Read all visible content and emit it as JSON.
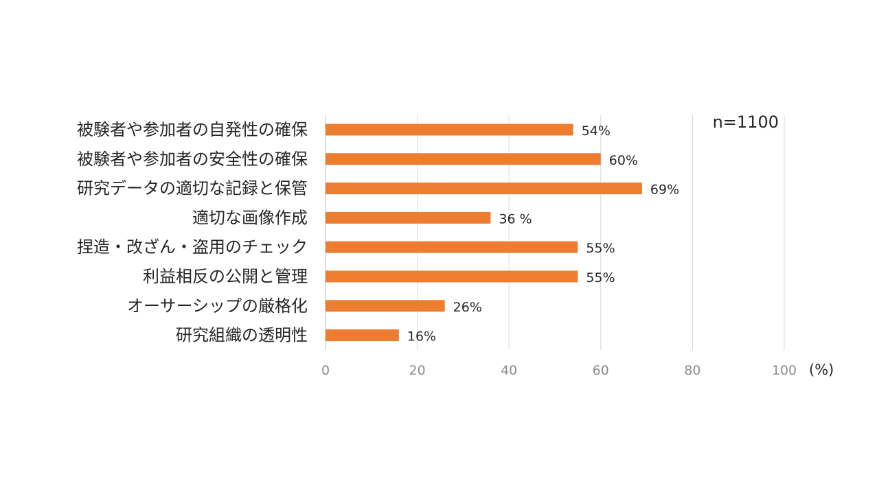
{
  "chart_data": {
    "type": "bar",
    "orientation": "horizontal",
    "categories": [
      "被験者や参加者の自発性の確保",
      "被験者や参加者の安全性の確保",
      "研究データの適切な記録と保管",
      "適切な画像作成",
      "捏造・改ざん・盗用のチェック",
      "利益相反の公開と管理",
      "オーサーシップの厳格化",
      "研究組織の透明性"
    ],
    "values": [
      54,
      60,
      69,
      36,
      55,
      55,
      26,
      16
    ],
    "data_labels": [
      "54%",
      "60%",
      "69%",
      "36 %",
      "55%",
      "55%",
      "26%",
      "16%"
    ],
    "xticks": [
      "0",
      "20",
      "40",
      "60",
      "80",
      "100"
    ],
    "xlim": [
      0,
      100
    ],
    "xunit": "(%)",
    "annotation": "n=1100",
    "grid": true,
    "bar_color": "#ED7D31",
    "grid_color": "#D9D9D9"
  }
}
